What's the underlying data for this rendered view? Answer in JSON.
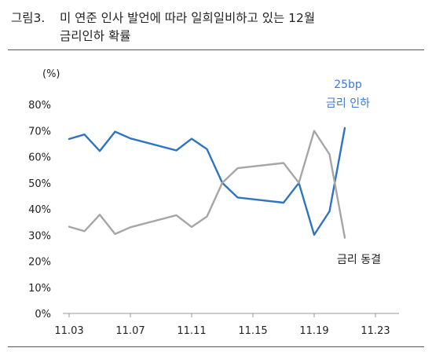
{
  "caption": {
    "label": "그림3.",
    "line1": "미  연준  인사  발언에  따라  일희일비하고  있는  12월",
    "line2": "금리인하 확률"
  },
  "chart_data": {
    "type": "line",
    "unit": "(%)",
    "x_ticks": [
      "11.03",
      "11.07",
      "11.11",
      "11.15",
      "11.19",
      "11.23"
    ],
    "y_ticks": [
      "80%",
      "70%",
      "60%",
      "50%",
      "40%",
      "30%",
      "20%",
      "10%",
      "0%"
    ],
    "ylim": [
      0,
      80
    ],
    "xlim": [
      "11.03",
      "11.23"
    ],
    "grid": false,
    "series": [
      {
        "name": "25bp 금리 인하",
        "label_lines": [
          "25bp",
          "금리 인하"
        ],
        "color": "#2f74c0",
        "points": [
          [
            "11.03",
            66.8
          ],
          [
            "11.04",
            68.5
          ],
          [
            "11.05",
            62.2
          ],
          [
            "11.06",
            69.6
          ],
          [
            "11.07",
            67.0
          ],
          [
            "11.10",
            62.4
          ],
          [
            "11.11",
            66.9
          ],
          [
            "11.12",
            62.9
          ],
          [
            "11.13",
            50.0
          ],
          [
            "11.14",
            44.4
          ],
          [
            "11.17",
            42.4
          ],
          [
            "11.18",
            50.0
          ],
          [
            "11.19",
            30.1
          ],
          [
            "11.20",
            39.1
          ],
          [
            "11.21",
            71.0
          ]
        ]
      },
      {
        "name": "금리 동결",
        "label_lines": [
          "금리 동결"
        ],
        "color": "#a6a6a6",
        "points": [
          [
            "11.03",
            33.2
          ],
          [
            "11.04",
            31.5
          ],
          [
            "11.05",
            37.8
          ],
          [
            "11.06",
            30.4
          ],
          [
            "11.07",
            33.0
          ],
          [
            "11.10",
            37.6
          ],
          [
            "11.11",
            33.1
          ],
          [
            "11.12",
            37.1
          ],
          [
            "11.13",
            50.0
          ],
          [
            "11.14",
            55.6
          ],
          [
            "11.17",
            57.6
          ],
          [
            "11.18",
            50.0
          ],
          [
            "11.19",
            69.9
          ],
          [
            "11.20",
            60.9
          ],
          [
            "11.21",
            29.0
          ]
        ]
      }
    ]
  }
}
